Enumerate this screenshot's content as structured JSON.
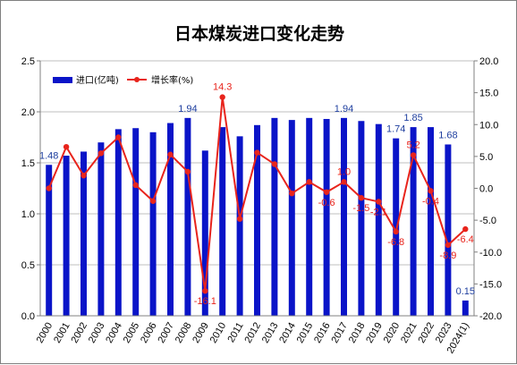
{
  "chart_data": {
    "type": "bar+line",
    "title": "日本煤炭进口变化走势",
    "categories": [
      "2000",
      "2001",
      "2002",
      "2003",
      "2004",
      "2005",
      "2006",
      "2007",
      "2008",
      "2009",
      "2010",
      "2011",
      "2012",
      "2013",
      "2014",
      "2015",
      "2016",
      "2017",
      "2018",
      "2019",
      "2020",
      "2021",
      "2022",
      "2023",
      "2024(1)"
    ],
    "series": [
      {
        "name": "进口(亿吨)",
        "type": "bar",
        "axis": "left",
        "color": "#0a14c8",
        "values": [
          1.48,
          1.57,
          1.61,
          1.7,
          1.83,
          1.84,
          1.8,
          1.89,
          1.94,
          1.62,
          1.85,
          1.76,
          1.87,
          1.94,
          1.92,
          1.94,
          1.93,
          1.94,
          1.91,
          1.88,
          1.74,
          1.85,
          1.85,
          1.68,
          0.15
        ]
      },
      {
        "name": "增长率(%)",
        "type": "line",
        "axis": "right",
        "color": "#e8241c",
        "values": [
          0.0,
          6.5,
          2.0,
          5.5,
          8.0,
          0.5,
          -2.0,
          5.3,
          2.6,
          -16.1,
          14.3,
          -4.8,
          5.6,
          3.8,
          -0.8,
          1.0,
          -0.6,
          1.0,
          -1.5,
          -2.1,
          -6.8,
          5.2,
          -0.4,
          -8.9,
          -6.4
        ]
      }
    ],
    "bar_labels": [
      {
        "index": 0,
        "text": "1.48"
      },
      {
        "index": 8,
        "text": "1.94"
      },
      {
        "index": 17,
        "text": "1.94"
      },
      {
        "index": 20,
        "text": "1.74"
      },
      {
        "index": 21,
        "text": "1.85"
      },
      {
        "index": 23,
        "text": "1.68"
      },
      {
        "index": 24,
        "text": "0.15"
      }
    ],
    "line_labels": [
      {
        "index": 9,
        "text": "-16.1"
      },
      {
        "index": 10,
        "text": "14.3"
      },
      {
        "index": 16,
        "text": "-0.6"
      },
      {
        "index": 17,
        "text": "1.0"
      },
      {
        "index": 18,
        "text": "-1.5"
      },
      {
        "index": 19,
        "text": "-2.1"
      },
      {
        "index": 20,
        "text": "-6.8"
      },
      {
        "index": 21,
        "text": "5.2"
      },
      {
        "index": 22,
        "text": "-0.4"
      },
      {
        "index": 23,
        "text": "-8.9"
      },
      {
        "index": 24,
        "text": "-6.4"
      }
    ],
    "y_left": {
      "min": 0,
      "max": 2.5,
      "ticks": [
        "0.0",
        "0.5",
        "1.0",
        "1.5",
        "2.0",
        "2.5"
      ]
    },
    "y_right": {
      "min": -20,
      "max": 20,
      "ticks": [
        "-20.0",
        "-15.0",
        "-10.0",
        "-5.0",
        "0.0",
        "5.0",
        "10.0",
        "15.0",
        "20.0"
      ]
    },
    "grid": true,
    "legend_position": "top-left"
  }
}
